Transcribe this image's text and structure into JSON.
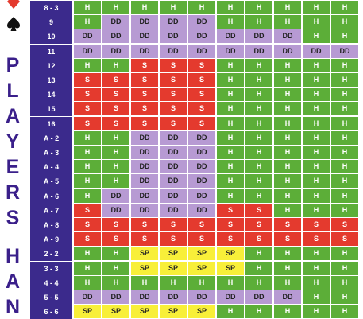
{
  "title_letters": [
    "P",
    "L",
    "A",
    "Y",
    "E",
    "R",
    "S",
    "H",
    "A",
    "N"
  ],
  "colors": {
    "H": "#5cae38",
    "S": "#e43a2e",
    "DD": "#b79ad3",
    "SP": "#f8ef39",
    "header": "#3b2a8c",
    "title": "#3a1f8a"
  },
  "rows": [
    {
      "hand": "8 - 3",
      "cells": [
        "H",
        "H",
        "H",
        "H",
        "H",
        "H",
        "H",
        "H",
        "H",
        "H"
      ]
    },
    {
      "hand": "9",
      "cells": [
        "H",
        "DD",
        "DD",
        "DD",
        "DD",
        "H",
        "H",
        "H",
        "H",
        "H"
      ]
    },
    {
      "hand": "10",
      "cells": [
        "DD",
        "DD",
        "DD",
        "DD",
        "DD",
        "DD",
        "DD",
        "DD",
        "H",
        "H"
      ]
    },
    {
      "hand": "11",
      "cells": [
        "DD",
        "DD",
        "DD",
        "DD",
        "DD",
        "DD",
        "DD",
        "DD",
        "DD",
        "DD"
      ]
    },
    {
      "hand": "12",
      "cells": [
        "H",
        "H",
        "S",
        "S",
        "S",
        "H",
        "H",
        "H",
        "H",
        "H"
      ]
    },
    {
      "hand": "13",
      "cells": [
        "S",
        "S",
        "S",
        "S",
        "S",
        "H",
        "H",
        "H",
        "H",
        "H"
      ]
    },
    {
      "hand": "14",
      "cells": [
        "S",
        "S",
        "S",
        "S",
        "S",
        "H",
        "H",
        "H",
        "H",
        "H"
      ]
    },
    {
      "hand": "15",
      "cells": [
        "S",
        "S",
        "S",
        "S",
        "S",
        "H",
        "H",
        "H",
        "H",
        "H"
      ]
    },
    {
      "hand": "16",
      "cells": [
        "S",
        "S",
        "S",
        "S",
        "S",
        "H",
        "H",
        "H",
        "H",
        "H"
      ]
    },
    {
      "hand": "A - 2",
      "cells": [
        "H",
        "H",
        "DD",
        "DD",
        "DD",
        "H",
        "H",
        "H",
        "H",
        "H"
      ]
    },
    {
      "hand": "A - 3",
      "cells": [
        "H",
        "H",
        "DD",
        "DD",
        "DD",
        "H",
        "H",
        "H",
        "H",
        "H"
      ]
    },
    {
      "hand": "A - 4",
      "cells": [
        "H",
        "H",
        "DD",
        "DD",
        "DD",
        "H",
        "H",
        "H",
        "H",
        "H"
      ]
    },
    {
      "hand": "A - 5",
      "cells": [
        "H",
        "H",
        "DD",
        "DD",
        "DD",
        "H",
        "H",
        "H",
        "H",
        "H"
      ]
    },
    {
      "hand": "A - 6",
      "cells": [
        "H",
        "DD",
        "DD",
        "DD",
        "DD",
        "H",
        "H",
        "H",
        "H",
        "H"
      ]
    },
    {
      "hand": "A - 7",
      "cells": [
        "S",
        "DD",
        "DD",
        "DD",
        "DD",
        "S",
        "S",
        "H",
        "H",
        "H"
      ]
    },
    {
      "hand": "A - 8",
      "cells": [
        "S",
        "S",
        "S",
        "S",
        "S",
        "S",
        "S",
        "S",
        "S",
        "S"
      ]
    },
    {
      "hand": "A - 9",
      "cells": [
        "S",
        "S",
        "S",
        "S",
        "S",
        "S",
        "S",
        "S",
        "S",
        "S"
      ]
    },
    {
      "hand": "2 - 2",
      "cells": [
        "H",
        "H",
        "SP",
        "SP",
        "SP",
        "SP",
        "H",
        "H",
        "H",
        "H"
      ]
    },
    {
      "hand": "3 - 3",
      "cells": [
        "H",
        "H",
        "SP",
        "SP",
        "SP",
        "SP",
        "H",
        "H",
        "H",
        "H"
      ]
    },
    {
      "hand": "4 - 4",
      "cells": [
        "H",
        "H",
        "H",
        "H",
        "H",
        "H",
        "H",
        "H",
        "H",
        "H"
      ]
    },
    {
      "hand": "5 - 5",
      "cells": [
        "DD",
        "DD",
        "DD",
        "DD",
        "DD",
        "DD",
        "DD",
        "DD",
        "H",
        "H"
      ]
    },
    {
      "hand": "6 - 6",
      "cells": [
        "SP",
        "SP",
        "SP",
        "SP",
        "SP",
        "H",
        "H",
        "H",
        "H",
        "H"
      ]
    }
  ]
}
